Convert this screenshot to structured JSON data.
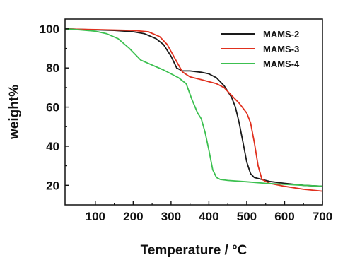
{
  "chart_data": {
    "type": "line",
    "xlabel": "Temperature / °C",
    "ylabel": "weight%",
    "xlim": [
      20,
      700
    ],
    "ylim": [
      10,
      105
    ],
    "xticks": [
      100,
      200,
      300,
      400,
      500,
      600,
      700
    ],
    "xtick_labels": [
      "100",
      "200",
      "300",
      "400",
      "500",
      "600",
      "700"
    ],
    "yticks": [
      20,
      40,
      60,
      80,
      100
    ],
    "ytick_labels": [
      "20",
      "40",
      "60",
      "80",
      "100"
    ],
    "grid": false,
    "legend_position": "top-right",
    "series": [
      {
        "name": "MAMS-2",
        "color": "#1a1a1a",
        "x": [
          20,
          50,
          100,
          150,
          200,
          230,
          260,
          280,
          300,
          315,
          330,
          350,
          380,
          400,
          420,
          440,
          460,
          470,
          480,
          490,
          500,
          510,
          520,
          540,
          560,
          600,
          650,
          700
        ],
        "y": [
          100,
          99.8,
          99.5,
          99.2,
          98.5,
          97.5,
          95,
          92,
          86,
          80,
          78.5,
          78.5,
          77.8,
          77,
          75,
          71,
          65,
          60,
          52,
          42,
          32,
          26,
          24,
          23,
          22,
          21,
          20,
          19.5
        ]
      },
      {
        "name": "MAMS-3",
        "color": "#e0301e",
        "x": [
          20,
          50,
          100,
          150,
          200,
          240,
          270,
          290,
          310,
          330,
          350,
          380,
          400,
          420,
          440,
          460,
          480,
          500,
          510,
          520,
          530,
          540,
          560,
          600,
          650,
          700
        ],
        "y": [
          100,
          99.8,
          99.6,
          99.4,
          99.2,
          98.5,
          96,
          92,
          85,
          78,
          75.5,
          74,
          73,
          72,
          70,
          66,
          62,
          57,
          52,
          42,
          30,
          23,
          21,
          19.5,
          18,
          17
        ]
      },
      {
        "name": "MAMS-4",
        "color": "#3cc050",
        "x": [
          20,
          50,
          100,
          130,
          160,
          190,
          220,
          250,
          280,
          300,
          320,
          340,
          355,
          370,
          380,
          390,
          400,
          410,
          420,
          430,
          450,
          500,
          550,
          600,
          650,
          700
        ],
        "y": [
          100,
          99.6,
          98.8,
          97.5,
          95,
          90,
          84,
          81.5,
          79,
          77,
          75,
          72,
          64,
          57,
          54,
          47,
          38,
          28,
          24,
          23,
          22.5,
          21.8,
          21,
          20.5,
          20,
          19.5
        ]
      }
    ]
  }
}
